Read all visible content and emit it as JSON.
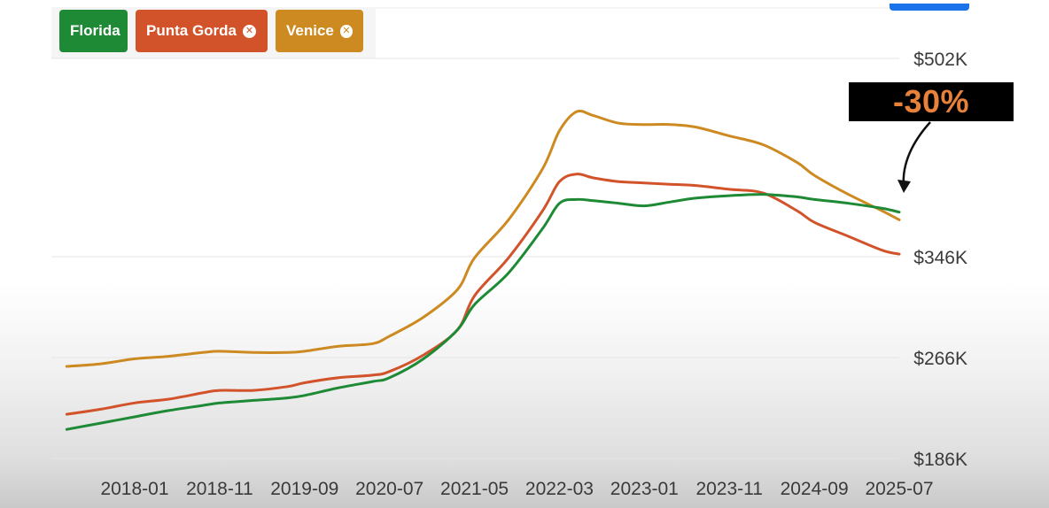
{
  "filters": [
    {
      "label": "Florida",
      "color": "#1e8a35",
      "removable": false
    },
    {
      "label": "Punta Gorda",
      "color": "#d2522a",
      "removable": true
    },
    {
      "label": "Venice",
      "color": "#cc8a21",
      "removable": true
    }
  ],
  "annotation": {
    "label": "-30%",
    "text_color": "#e8823a"
  },
  "chart_data": {
    "type": "line",
    "title": "",
    "xlabel": "",
    "ylabel": "",
    "x_ticks": [
      "2018-01",
      "2018-11",
      "2019-09",
      "2020-07",
      "2021-05",
      "2022-03",
      "2023-01",
      "2023-11",
      "2024-09",
      "2025-07"
    ],
    "y_ticks": [
      {
        "value": 186,
        "label": "$186K"
      },
      {
        "value": 266,
        "label": "$266K"
      },
      {
        "value": 346,
        "label": "$346K"
      },
      {
        "value": 502,
        "label": "$502K"
      }
    ],
    "ylim": [
      186,
      502
    ],
    "grid": true,
    "series": [
      {
        "name": "Venice",
        "color": "#cc8a21",
        "x": [
          "2017-05",
          "2017-09",
          "2018-01",
          "2018-05",
          "2018-09",
          "2018-11",
          "2019-03",
          "2019-07",
          "2019-09",
          "2020-01",
          "2020-05",
          "2020-07",
          "2020-11",
          "2021-03",
          "2021-05",
          "2021-09",
          "2022-01",
          "2022-03",
          "2022-05",
          "2022-07",
          "2022-10",
          "2023-01",
          "2023-04",
          "2023-07",
          "2023-11",
          "2024-03",
          "2024-07",
          "2024-09",
          "2025-01",
          "2025-05",
          "2025-07"
        ],
        "values": [
          259,
          261,
          265,
          267,
          270,
          271,
          270,
          270,
          271,
          275,
          277,
          283,
          298,
          320,
          345,
          375,
          415,
          445,
          460,
          457,
          451,
          450,
          450,
          448,
          441,
          434,
          420,
          410,
          395,
          382,
          375
        ]
      },
      {
        "name": "Punta Gorda",
        "color": "#d2522a",
        "x": [
          "2017-05",
          "2017-09",
          "2018-01",
          "2018-05",
          "2018-09",
          "2018-11",
          "2019-03",
          "2019-07",
          "2019-09",
          "2020-01",
          "2020-05",
          "2020-07",
          "2020-11",
          "2021-03",
          "2021-05",
          "2021-09",
          "2022-01",
          "2022-03",
          "2022-05",
          "2022-07",
          "2022-10",
          "2023-01",
          "2023-04",
          "2023-07",
          "2023-11",
          "2024-03",
          "2024-07",
          "2024-09",
          "2025-01",
          "2025-05",
          "2025-07"
        ],
        "values": [
          221,
          225,
          230,
          233,
          238,
          240,
          240,
          243,
          246,
          250,
          252,
          255,
          268,
          288,
          315,
          345,
          382,
          405,
          411,
          408,
          405,
          404,
          403,
          402,
          399,
          396,
          382,
          373,
          362,
          351,
          348
        ]
      },
      {
        "name": "Florida",
        "color": "#1e8a35",
        "x": [
          "2017-05",
          "2017-09",
          "2018-01",
          "2018-05",
          "2018-09",
          "2018-11",
          "2019-03",
          "2019-07",
          "2019-09",
          "2020-01",
          "2020-05",
          "2020-07",
          "2020-11",
          "2021-03",
          "2021-05",
          "2021-09",
          "2022-01",
          "2022-03",
          "2022-05",
          "2022-07",
          "2022-10",
          "2023-01",
          "2023-04",
          "2023-07",
          "2023-11",
          "2024-03",
          "2024-07",
          "2024-09",
          "2025-01",
          "2025-05",
          "2025-07"
        ],
        "values": [
          209,
          214,
          219,
          224,
          228,
          230,
          232,
          234,
          236,
          242,
          247,
          250,
          265,
          288,
          308,
          333,
          368,
          388,
          391,
          390,
          388,
          386,
          389,
          392,
          394,
          395,
          393,
          391,
          388,
          384,
          381
        ]
      }
    ]
  }
}
